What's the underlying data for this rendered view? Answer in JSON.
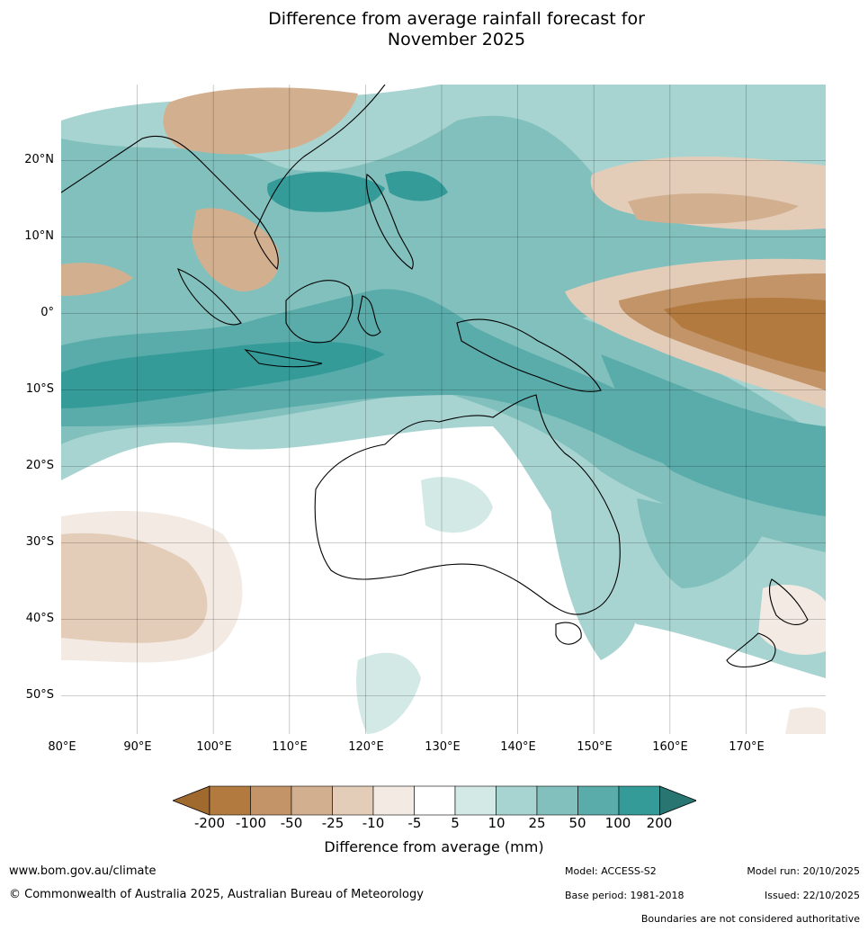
{
  "title": {
    "line1": "Difference from average rainfall forecast for",
    "line2": "November 2025"
  },
  "map": {
    "lon_range": [
      80,
      180
    ],
    "lat_range": [
      -55,
      30
    ],
    "lat_labels": [
      "20°N",
      "10°N",
      "0°",
      "10°S",
      "20°S",
      "30°S",
      "40°S",
      "50°S"
    ],
    "lon_labels": [
      "80°E",
      "90°E",
      "100°E",
      "110°E",
      "120°E",
      "130°E",
      "140°E",
      "150°E",
      "160°E",
      "170°E"
    ],
    "regions": [
      "Indian Ocean",
      "Maritime Continent",
      "Australia",
      "New Zealand",
      "Western Pacific"
    ]
  },
  "legend": {
    "ticks": [
      "-200",
      "-100",
      "-50",
      "-25",
      "-10",
      "-5",
      "5",
      "10",
      "25",
      "50",
      "100",
      "200"
    ],
    "colors": [
      "#a0692e",
      "#b27a3e",
      "#c29468",
      "#d2b08f",
      "#e4cdb8",
      "#f3ebe3",
      "#ffffff",
      "#d3e9e6",
      "#a7d4d1",
      "#82c0bd",
      "#5aacaa",
      "#349b98",
      "#287572"
    ],
    "title": "Difference from average (mm)"
  },
  "footer": {
    "website": "www.bom.gov.au/climate",
    "copyright": "© Commonwealth of Australia 2025, Australian Bureau of Meteorology",
    "model": "Model: ACCESS-S2",
    "base_period": "Base period: 1981-2018",
    "model_run": "Model run: 20/10/2025",
    "issued": "Issued: 22/10/2025",
    "disclaimer": "Boundaries are not considered authoritative"
  }
}
